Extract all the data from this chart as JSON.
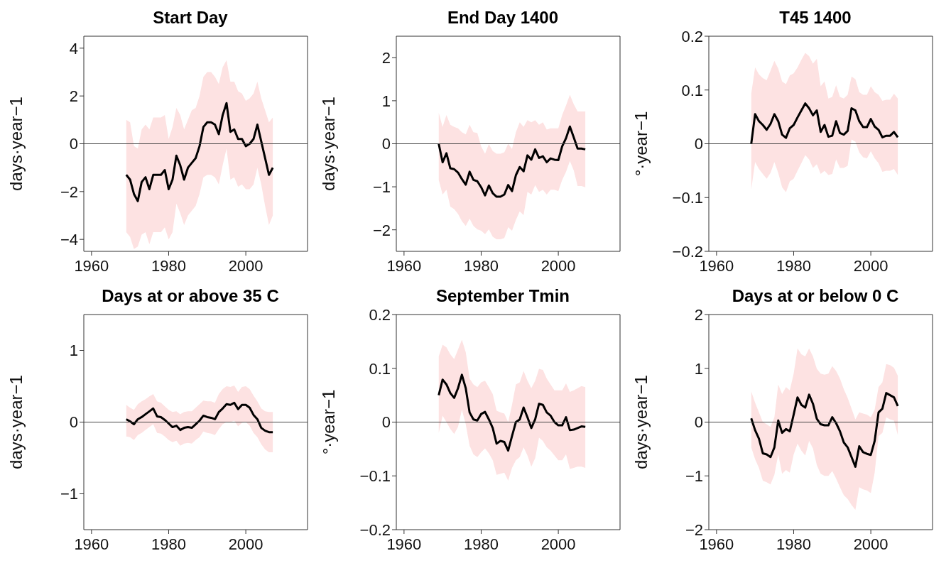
{
  "chart_data": [
    {
      "type": "line",
      "title": "Start Day",
      "ylabel": "days·year−1",
      "xlim": [
        1958,
        2016
      ],
      "xticks": [
        1960,
        1980,
        2000
      ],
      "ylim": [
        -4.5,
        4.5
      ],
      "yticks": [
        -4,
        -2,
        0,
        2,
        4
      ],
      "ref_lines": [
        {
          "axis": "y",
          "value": 0
        }
      ],
      "x": [
        1969,
        1970,
        1971,
        1972,
        1973,
        1974,
        1975,
        1976,
        1977,
        1978,
        1979,
        1980,
        1981,
        1982,
        1983,
        1984,
        1985,
        1986,
        1987,
        1988,
        1989,
        1990,
        1991,
        1992,
        1993,
        1994,
        1995,
        1996,
        1997,
        1998,
        1999,
        2000,
        2001,
        2002,
        2003,
        2004,
        2005,
        2006,
        2007
      ],
      "series": [
        {
          "color": "#000000",
          "values": [
            -1.3,
            -1.5,
            -2.1,
            -2.4,
            -1.6,
            -1.4,
            -1.9,
            -1.3,
            -1.3,
            -1.3,
            -1.1,
            -1.9,
            -1.5,
            -0.5,
            -0.9,
            -1.5,
            -1.0,
            -0.8,
            -0.6,
            -0.1,
            0.7,
            0.9,
            0.9,
            0.8,
            0.4,
            1.2,
            1.7,
            0.5,
            0.6,
            0.2,
            0.2,
            -0.1,
            0.0,
            0.2,
            0.8,
            0.1,
            -0.6,
            -1.3,
            -1.0
          ],
          "lower": [
            -3.7,
            -3.9,
            -4.4,
            -4.3,
            -3.8,
            -3.7,
            -4.2,
            -3.7,
            -3.7,
            -3.7,
            -3.5,
            -4.0,
            -3.7,
            -2.5,
            -2.9,
            -3.4,
            -3.0,
            -2.8,
            -2.6,
            -2.1,
            -1.4,
            -1.3,
            -1.3,
            -1.4,
            -1.7,
            -0.9,
            -0.2,
            -1.5,
            -1.4,
            -1.8,
            -1.7,
            -1.9,
            -1.9,
            -1.7,
            -1.0,
            -1.7,
            -2.6,
            -3.4,
            -3.0
          ],
          "upper": [
            1.0,
            0.9,
            -0.1,
            -0.2,
            0.6,
            0.8,
            0.6,
            1.1,
            1.1,
            1.1,
            1.2,
            0.2,
            0.7,
            1.5,
            1.2,
            0.6,
            1.0,
            1.4,
            1.5,
            2.0,
            2.8,
            3.0,
            3.0,
            2.8,
            2.5,
            3.2,
            3.5,
            2.6,
            2.6,
            2.2,
            2.1,
            1.8,
            1.9,
            2.1,
            2.6,
            1.9,
            1.4,
            0.9,
            1.1
          ]
        }
      ]
    },
    {
      "type": "line",
      "title": "End Day 1400",
      "ylabel": "days·year−1",
      "xlim": [
        1958,
        2016
      ],
      "xticks": [
        1960,
        1980,
        2000
      ],
      "ylim": [
        -2.5,
        2.5
      ],
      "yticks": [
        -2,
        -1,
        0,
        1,
        2
      ],
      "ref_lines": [
        {
          "axis": "y",
          "value": 0
        }
      ],
      "x": [
        1969,
        1970,
        1971,
        1972,
        1973,
        1974,
        1975,
        1976,
        1977,
        1978,
        1979,
        1980,
        1981,
        1982,
        1983,
        1984,
        1985,
        1986,
        1987,
        1988,
        1989,
        1990,
        1991,
        1992,
        1993,
        1994,
        1995,
        1996,
        1997,
        1998,
        1999,
        2000,
        2001,
        2002,
        2003,
        2004,
        2005,
        2006,
        2007
      ],
      "series": [
        {
          "color": "#000000",
          "values": [
            0.0,
            -0.43,
            -0.22,
            -0.57,
            -0.59,
            -0.67,
            -0.82,
            -0.95,
            -0.65,
            -0.84,
            -0.87,
            -1.01,
            -1.2,
            -0.97,
            -1.15,
            -1.23,
            -1.23,
            -1.18,
            -0.96,
            -1.1,
            -0.73,
            -0.54,
            -0.64,
            -0.27,
            -0.37,
            -0.13,
            -0.33,
            -0.29,
            -0.43,
            -0.34,
            -0.37,
            -0.38,
            -0.06,
            0.13,
            0.4,
            0.15,
            -0.11,
            -0.11,
            -0.13
          ],
          "lower": [
            -0.84,
            -1.18,
            -1.07,
            -1.46,
            -1.52,
            -1.63,
            -1.8,
            -1.91,
            -1.74,
            -1.91,
            -1.99,
            -2.02,
            -2.1,
            -1.99,
            -2.16,
            -2.22,
            -2.22,
            -2.19,
            -1.94,
            -2.02,
            -1.77,
            -1.57,
            -1.66,
            -1.12,
            -1.18,
            -0.96,
            -1.12,
            -1.07,
            -1.18,
            -1.07,
            -1.07,
            -1.1,
            -0.84,
            -0.65,
            -0.4,
            -0.62,
            -0.98,
            -0.98,
            -1.01
          ],
          "upper": [
            0.72,
            0.39,
            0.67,
            0.44,
            0.39,
            0.36,
            0.27,
            0.22,
            0.44,
            0.27,
            0.25,
            -0.06,
            -0.23,
            -0.01,
            -0.17,
            -0.23,
            -0.23,
            -0.2,
            0.0,
            -0.12,
            0.27,
            0.5,
            0.39,
            0.55,
            0.5,
            0.55,
            0.44,
            0.5,
            0.33,
            0.36,
            0.36,
            0.36,
            0.67,
            0.89,
            1.14,
            0.92,
            0.75,
            0.75,
            0.75
          ]
        }
      ]
    },
    {
      "type": "line",
      "title": "T45 1400",
      "ylabel": "°·year−1",
      "xlim": [
        1958,
        2016
      ],
      "xticks": [
        1960,
        1980,
        2000
      ],
      "ylim": [
        -0.2,
        0.2
      ],
      "yticks": [
        -0.2,
        -0.1,
        0,
        0.1,
        0.2
      ],
      "ref_lines": [
        {
          "axis": "y",
          "value": 0
        }
      ],
      "x": [
        1969,
        1970,
        1971,
        1972,
        1973,
        1974,
        1975,
        1976,
        1977,
        1978,
        1979,
        1980,
        1981,
        1982,
        1983,
        1984,
        1985,
        1986,
        1987,
        1988,
        1989,
        1990,
        1991,
        1992,
        1993,
        1994,
        1995,
        1996,
        1997,
        1998,
        1999,
        2000,
        2001,
        2002,
        2003,
        2004,
        2005,
        2006,
        2007
      ],
      "series": [
        {
          "color": "#000000",
          "values": [
            0.0,
            0.055,
            0.042,
            0.035,
            0.026,
            0.037,
            0.055,
            0.042,
            0.017,
            0.011,
            0.029,
            0.035,
            0.049,
            0.062,
            0.075,
            0.066,
            0.053,
            0.062,
            0.022,
            0.035,
            0.013,
            0.015,
            0.042,
            0.02,
            0.017,
            0.024,
            0.066,
            0.062,
            0.042,
            0.031,
            0.031,
            0.046,
            0.032,
            0.026,
            0.012,
            0.015,
            0.015,
            0.022,
            0.012
          ],
          "lower": [
            -0.085,
            -0.034,
            -0.047,
            -0.056,
            -0.065,
            -0.054,
            -0.034,
            -0.054,
            -0.081,
            -0.09,
            -0.07,
            -0.065,
            -0.05,
            -0.036,
            -0.021,
            -0.029,
            -0.045,
            -0.038,
            -0.056,
            -0.05,
            -0.058,
            -0.056,
            -0.029,
            -0.045,
            -0.045,
            -0.041,
            0.008,
            0.004,
            -0.016,
            -0.025,
            -0.027,
            -0.014,
            -0.027,
            -0.036,
            -0.052,
            -0.05,
            -0.05,
            -0.047,
            -0.058
          ],
          "upper": [
            0.093,
            0.142,
            0.129,
            0.122,
            0.118,
            0.136,
            0.154,
            0.14,
            0.116,
            0.111,
            0.127,
            0.131,
            0.142,
            0.156,
            0.169,
            0.163,
            0.149,
            0.158,
            0.107,
            0.116,
            0.084,
            0.087,
            0.109,
            0.087,
            0.084,
            0.091,
            0.125,
            0.12,
            0.096,
            0.091,
            0.091,
            0.107,
            0.096,
            0.091,
            0.08,
            0.082,
            0.082,
            0.093,
            0.084
          ]
        }
      ]
    },
    {
      "type": "line",
      "title": "Days at or above 35 C",
      "ylabel": "days·year−1",
      "xlim": [
        1958,
        2016
      ],
      "xticks": [
        1960,
        1980,
        2000
      ],
      "ylim": [
        -1.5,
        1.5
      ],
      "yticks": [
        -1,
        0,
        1
      ],
      "ref_lines": [
        {
          "axis": "y",
          "value": 0
        }
      ],
      "x": [
        1969,
        1970,
        1971,
        1972,
        1973,
        1974,
        1975,
        1976,
        1977,
        1978,
        1979,
        1980,
        1981,
        1982,
        1983,
        1984,
        1985,
        1986,
        1987,
        1988,
        1989,
        1990,
        1991,
        1992,
        1993,
        1994,
        1995,
        1996,
        1997,
        1998,
        1999,
        2000,
        2001,
        2002,
        2003,
        2004,
        2005,
        2006,
        2007
      ],
      "series": [
        {
          "color": "#000000",
          "values": [
            0.04,
            0.01,
            -0.03,
            0.04,
            0.07,
            0.11,
            0.15,
            0.19,
            0.08,
            0.07,
            0.03,
            -0.02,
            -0.07,
            -0.05,
            -0.11,
            -0.08,
            -0.07,
            -0.08,
            -0.03,
            0.02,
            0.09,
            0.07,
            0.06,
            0.04,
            0.14,
            0.19,
            0.25,
            0.24,
            0.27,
            0.18,
            0.24,
            0.24,
            0.2,
            0.1,
            0.04,
            -0.08,
            -0.12,
            -0.14,
            -0.14
          ],
          "lower": [
            -0.2,
            -0.21,
            -0.25,
            -0.18,
            -0.15,
            -0.11,
            -0.07,
            -0.03,
            -0.15,
            -0.16,
            -0.2,
            -0.25,
            -0.28,
            -0.26,
            -0.33,
            -0.3,
            -0.29,
            -0.3,
            -0.25,
            -0.21,
            -0.13,
            -0.15,
            -0.16,
            -0.18,
            -0.1,
            -0.03,
            0.0,
            0.0,
            0.02,
            -0.06,
            -0.01,
            0.0,
            -0.05,
            -0.15,
            -0.21,
            -0.31,
            -0.38,
            -0.42,
            -0.42
          ],
          "upper": [
            0.24,
            0.2,
            0.17,
            0.25,
            0.29,
            0.32,
            0.36,
            0.39,
            0.29,
            0.27,
            0.22,
            0.17,
            0.14,
            0.15,
            0.11,
            0.14,
            0.15,
            0.15,
            0.2,
            0.25,
            0.3,
            0.29,
            0.29,
            0.27,
            0.39,
            0.46,
            0.5,
            0.49,
            0.51,
            0.42,
            0.49,
            0.5,
            0.46,
            0.37,
            0.29,
            0.19,
            0.15,
            0.14,
            0.14
          ]
        }
      ]
    },
    {
      "type": "line",
      "title": "September Tmin",
      "ylabel": "°·year−1",
      "xlim": [
        1958,
        2016
      ],
      "xticks": [
        1960,
        1980,
        2000
      ],
      "ylim": [
        -0.2,
        0.2
      ],
      "yticks": [
        -0.2,
        -0.1,
        0,
        0.1,
        0.2
      ],
      "ref_lines": [
        {
          "axis": "y",
          "value": 0
        }
      ],
      "x": [
        1969,
        1970,
        1971,
        1972,
        1973,
        1974,
        1975,
        1976,
        1977,
        1978,
        1979,
        1980,
        1981,
        1982,
        1983,
        1984,
        1985,
        1986,
        1987,
        1988,
        1989,
        1990,
        1991,
        1992,
        1993,
        1994,
        1995,
        1996,
        1997,
        1998,
        1999,
        2000,
        2001,
        2002,
        2003,
        2004,
        2005,
        2006,
        2007
      ],
      "series": [
        {
          "color": "#000000",
          "values": [
            0.05,
            0.079,
            0.07,
            0.054,
            0.045,
            0.063,
            0.088,
            0.063,
            0.018,
            0.005,
            0.003,
            0.015,
            0.019,
            0.005,
            -0.011,
            -0.04,
            -0.035,
            -0.037,
            -0.053,
            -0.026,
            0.0,
            0.005,
            0.027,
            0.009,
            -0.011,
            0.005,
            0.034,
            0.032,
            0.018,
            0.012,
            0.0,
            -0.006,
            -0.006,
            0.009,
            -0.015,
            -0.014,
            -0.011,
            -0.008,
            -0.009
          ],
          "lower": [
            -0.02,
            0.012,
            0.0,
            -0.013,
            -0.022,
            -0.009,
            0.023,
            -0.004,
            -0.044,
            -0.06,
            -0.065,
            -0.056,
            -0.049,
            -0.058,
            -0.071,
            -0.098,
            -0.096,
            -0.094,
            -0.109,
            -0.085,
            -0.071,
            -0.065,
            -0.047,
            -0.062,
            -0.083,
            -0.067,
            -0.029,
            -0.035,
            -0.047,
            -0.053,
            -0.062,
            -0.071,
            -0.071,
            -0.06,
            -0.087,
            -0.085,
            -0.083,
            -0.083,
            -0.085
          ],
          "upper": [
            0.122,
            0.144,
            0.139,
            0.126,
            0.117,
            0.135,
            0.153,
            0.13,
            0.081,
            0.07,
            0.065,
            0.074,
            0.077,
            0.065,
            0.052,
            0.021,
            0.018,
            0.016,
            0.0,
            0.032,
            0.07,
            0.074,
            0.095,
            0.077,
            0.063,
            0.077,
            0.099,
            0.097,
            0.081,
            0.07,
            0.059,
            0.059,
            0.059,
            0.072,
            0.056,
            0.059,
            0.063,
            0.067,
            0.065
          ]
        }
      ]
    },
    {
      "type": "line",
      "title": "Days at or below 0 C",
      "ylabel": "days·year−1",
      "xlim": [
        1958,
        2016
      ],
      "xticks": [
        1960,
        1980,
        2000
      ],
      "ylim": [
        -2,
        2
      ],
      "yticks": [
        -2,
        -1,
        0,
        1,
        2
      ],
      "ref_lines": [
        {
          "axis": "y",
          "value": 0
        }
      ],
      "x": [
        1969,
        1970,
        1971,
        1972,
        1973,
        1974,
        1975,
        1976,
        1977,
        1978,
        1979,
        1980,
        1981,
        1982,
        1983,
        1984,
        1985,
        1986,
        1987,
        1988,
        1989,
        1990,
        1991,
        1992,
        1993,
        1994,
        1995,
        1996,
        1997,
        1998,
        1999,
        2000,
        2001,
        2002,
        2003,
        2004,
        2005,
        2006,
        2007
      ],
      "series": [
        {
          "color": "#000000",
          "values": [
            0.07,
            -0.15,
            -0.31,
            -0.58,
            -0.6,
            -0.65,
            -0.47,
            0.03,
            -0.2,
            -0.13,
            -0.17,
            0.14,
            0.46,
            0.32,
            0.27,
            0.51,
            0.34,
            0.06,
            -0.04,
            -0.06,
            -0.06,
            0.09,
            -0.02,
            -0.17,
            -0.38,
            -0.47,
            -0.65,
            -0.83,
            -0.45,
            -0.56,
            -0.59,
            -0.61,
            -0.35,
            0.18,
            0.25,
            0.54,
            0.5,
            0.46,
            0.3
          ],
          "lower": [
            -0.47,
            -0.69,
            -0.85,
            -1.09,
            -1.12,
            -1.16,
            -0.98,
            -0.6,
            -0.96,
            -0.89,
            -0.94,
            -0.6,
            -0.4,
            -0.53,
            -0.62,
            -0.35,
            -0.49,
            -0.8,
            -0.96,
            -1.0,
            -1.0,
            -0.91,
            -1.05,
            -1.21,
            -1.36,
            -1.43,
            -1.54,
            -1.63,
            -1.21,
            -1.25,
            -1.27,
            -1.32,
            -0.94,
            -0.26,
            -0.2,
            0.09,
            0.05,
            0.03,
            -0.24
          ],
          "upper": [
            0.57,
            0.36,
            0.18,
            0.0,
            -0.04,
            -0.09,
            0.09,
            0.7,
            0.52,
            0.65,
            0.59,
            0.9,
            1.37,
            1.26,
            1.22,
            1.37,
            1.22,
            0.99,
            0.9,
            0.88,
            0.9,
            1.04,
            0.95,
            0.81,
            0.61,
            0.45,
            0.25,
            0.05,
            0.18,
            0.16,
            0.14,
            0.09,
            0.23,
            0.65,
            0.74,
            1.08,
            1.06,
            1.01,
            0.86
          ]
        }
      ]
    }
  ]
}
